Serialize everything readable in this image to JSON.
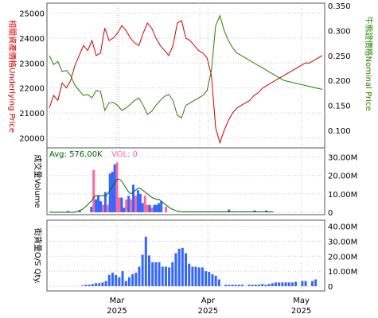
{
  "chart_data": [
    {
      "type": "line",
      "panel": "price",
      "ylabel_left": "相關資產價格Underlying Price",
      "ylabel_right": "牛熊證價格Nominal Price",
      "ylim_left": [
        19500,
        25400
      ],
      "ylim_right": [
        0.06,
        0.355
      ],
      "yticks_left": [
        "20000",
        "21000",
        "22000",
        "23000",
        "24000",
        "25000"
      ],
      "yticks_right": [
        "0.100",
        "0.150",
        "0.200",
        "0.250",
        "0.300",
        "0.350"
      ],
      "colors": {
        "underlying": "#cc0000",
        "nominal": "#2a7f00",
        "left_axis": "#cc0000",
        "right_axis": "#2a7f00"
      },
      "series": [
        {
          "axis": "left",
          "values": [
            21200,
            21700,
            21500,
            22200,
            22000,
            22300,
            22900,
            23300,
            23700,
            23500,
            23900,
            23300,
            23400,
            24400,
            23900,
            24000,
            24200,
            24500,
            24300,
            24000,
            23800,
            23700,
            24200,
            24600,
            24400,
            24000,
            23700,
            23500,
            23300,
            23700,
            24600,
            24700,
            24000,
            23900,
            23700,
            23500,
            23400,
            23200,
            22500,
            20400,
            19800,
            20300,
            20700,
            21000,
            21200,
            21300,
            21400,
            21500,
            21700,
            21800,
            22000,
            22100,
            22200,
            22300,
            22400,
            22500,
            22600,
            22700,
            22800,
            22900,
            23000,
            23000,
            23100,
            23200,
            23300
          ]
        },
        {
          "axis": "right",
          "values": [
            0.25,
            0.232,
            0.238,
            0.218,
            0.22,
            0.21,
            0.19,
            0.18,
            0.17,
            0.172,
            0.165,
            0.18,
            0.178,
            0.14,
            0.155,
            0.156,
            0.15,
            0.14,
            0.145,
            0.152,
            0.16,
            0.165,
            0.15,
            0.132,
            0.138,
            0.15,
            0.16,
            0.168,
            0.172,
            0.16,
            0.13,
            0.125,
            0.15,
            0.155,
            0.16,
            0.165,
            0.17,
            0.18,
            0.22,
            0.31,
            0.33,
            0.3,
            0.28,
            0.265,
            0.255,
            0.25,
            0.245,
            0.24,
            0.235,
            0.23,
            0.225,
            0.22,
            0.215,
            0.21,
            0.205,
            0.2,
            0.198,
            0.196,
            0.194,
            0.192,
            0.19,
            0.188,
            0.186,
            0.184,
            0.182
          ]
        }
      ]
    },
    {
      "type": "bar",
      "panel": "volume",
      "ylabel": "成交量Volume",
      "avg_label": "Avg: 576.00K",
      "vol_label": "VOL: 0",
      "ylim": [
        0,
        35000000
      ],
      "yticks": [
        "0",
        "10.00M",
        "20.00M",
        "30.00M"
      ],
      "colors": {
        "up": "#3366ff",
        "down": "#ff6699",
        "avg_line": "#006600"
      },
      "bars": [
        {
          "i": 8,
          "v": 900000,
          "c": "down"
        },
        {
          "i": 13,
          "v": 900000,
          "c": "up"
        },
        {
          "i": 18,
          "v": 3000000,
          "c": "up"
        },
        {
          "i": 19,
          "v": 23000000,
          "c": "down"
        },
        {
          "i": 20,
          "v": 7000000,
          "c": "up"
        },
        {
          "i": 21,
          "v": 9000000,
          "c": "up"
        },
        {
          "i": 22,
          "v": 6000000,
          "c": "up"
        },
        {
          "i": 23,
          "v": 4000000,
          "c": "down"
        },
        {
          "i": 24,
          "v": 11000000,
          "c": "up"
        },
        {
          "i": 25,
          "v": 4000000,
          "c": "down"
        },
        {
          "i": 26,
          "v": 21000000,
          "c": "up"
        },
        {
          "i": 27,
          "v": 22000000,
          "c": "up"
        },
        {
          "i": 28,
          "v": 26000000,
          "c": "up"
        },
        {
          "i": 29,
          "v": 27000000,
          "c": "down"
        },
        {
          "i": 30,
          "v": 8000000,
          "c": "down"
        },
        {
          "i": 31,
          "v": 8000000,
          "c": "up"
        },
        {
          "i": 32,
          "v": 2500000,
          "c": "up"
        },
        {
          "i": 33,
          "v": 7000000,
          "c": "down"
        },
        {
          "i": 34,
          "v": 9000000,
          "c": "up"
        },
        {
          "i": 35,
          "v": 7000000,
          "c": "down"
        },
        {
          "i": 36,
          "v": 15000000,
          "c": "up"
        },
        {
          "i": 37,
          "v": 9000000,
          "c": "down"
        },
        {
          "i": 38,
          "v": 12000000,
          "c": "up"
        },
        {
          "i": 39,
          "v": 10000000,
          "c": "up"
        },
        {
          "i": 40,
          "v": 5000000,
          "c": "up"
        },
        {
          "i": 41,
          "v": 9000000,
          "c": "down"
        },
        {
          "i": 42,
          "v": 4000000,
          "c": "down"
        },
        {
          "i": 43,
          "v": 4000000,
          "c": "up"
        },
        {
          "i": 44,
          "v": 2500000,
          "c": "down"
        },
        {
          "i": 45,
          "v": 4000000,
          "c": "up"
        },
        {
          "i": 46,
          "v": 4000000,
          "c": "up"
        },
        {
          "i": 47,
          "v": 5000000,
          "c": "up"
        },
        {
          "i": 48,
          "v": 6000000,
          "c": "up"
        },
        {
          "i": 50,
          "v": 3000000,
          "c": "down"
        },
        {
          "i": 77,
          "v": 1500000,
          "c": "up"
        },
        {
          "i": 88,
          "v": 1000000,
          "c": "up"
        },
        {
          "i": 93,
          "v": 1000000,
          "c": "up"
        }
      ],
      "avg": [
        0,
        0,
        0,
        0,
        0,
        0,
        0,
        0,
        0,
        0,
        0,
        0,
        500000,
        1000000,
        1500000,
        2500000,
        3500000,
        5000000,
        6000000,
        8000000,
        9000000,
        9000000,
        9000000,
        9000000,
        9000000,
        10000000,
        12000000,
        14000000,
        16000000,
        18000000,
        18000000,
        17000000,
        15000000,
        13000000,
        11000000,
        10000000,
        11000000,
        12000000,
        13000000,
        13000000,
        12000000,
        11000000,
        10000000,
        9000000,
        8000000,
        7500000,
        7000000,
        7000000,
        6000000,
        5000000,
        4000000,
        3000000,
        2000000,
        1500000,
        1000000,
        600000,
        400000,
        300000,
        200000,
        200000,
        200000,
        200000,
        200000,
        200000,
        200000,
        200000,
        200000,
        200000,
        200000,
        200000,
        200000,
        200000,
        200000,
        200000,
        200000,
        200000,
        200000,
        200000,
        200000,
        200000,
        200000,
        200000,
        200000,
        200000,
        200000,
        200000,
        200000,
        200000,
        200000,
        200000,
        200000,
        200000,
        200000,
        200000,
        200000,
        200000,
        200000
      ]
    },
    {
      "type": "bar",
      "panel": "outstanding",
      "ylabel": "街貨量O/S Qty.",
      "ylim": [
        0,
        44000000
      ],
      "yticks": [
        "0",
        "10.00M",
        "20.00M",
        "30.00M",
        "40.00M"
      ],
      "colors": {
        "bar": "#3366ff"
      },
      "values": [
        0,
        0,
        0,
        0,
        0,
        0,
        0,
        0,
        0,
        0,
        500000,
        1000000,
        1000000,
        1500000,
        2000000,
        2000000,
        2500000,
        3500000,
        7500000,
        9000000,
        7500000,
        6000000,
        10000000,
        3500000,
        6000000,
        8000000,
        9000000,
        13000000,
        21000000,
        33000000,
        20500000,
        16000000,
        16000000,
        16000000,
        13000000,
        13000000,
        12500000,
        16000000,
        22000000,
        25000000,
        25500000,
        22000000,
        15000000,
        13000000,
        13000000,
        12500000,
        12500000,
        10000000,
        9500000,
        8000000,
        7000000,
        4500000,
        0,
        1000000,
        1000000,
        1000000,
        1000000,
        1000000,
        1000000,
        0,
        1000000,
        1000000,
        1000000,
        1000000,
        1500000,
        1000000,
        1500000,
        2000000,
        2500000,
        2500000,
        2500000,
        2500000,
        2500000,
        2500000,
        3000000,
        0,
        3500000,
        3500000,
        0,
        3500000,
        4500000,
        0,
        0
      ],
      "x_labels": [
        {
          "month": "Mar",
          "year": "2025",
          "i": 29
        },
        {
          "month": "Apr",
          "year": "2025",
          "i": 68
        },
        {
          "month": "May",
          "year": "2025",
          "i": 108
        }
      ]
    }
  ]
}
